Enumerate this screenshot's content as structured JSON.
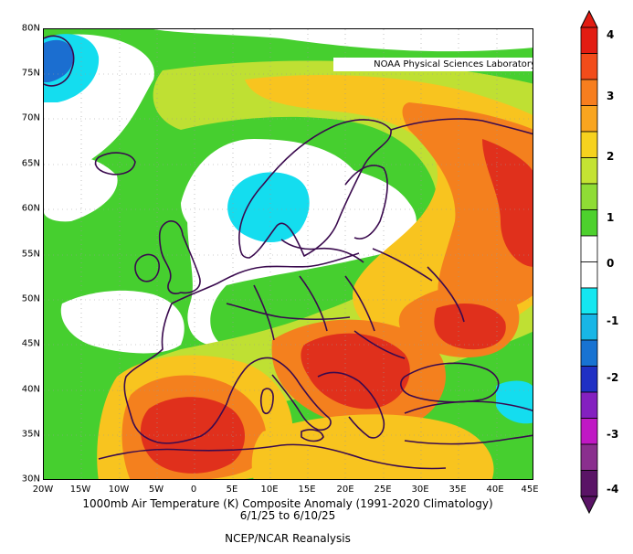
{
  "credit": "NOAA Physical Sciences Laboratory",
  "title": "1000mb Air Temperature (K) Composite Anomaly (1991-2020 Climatology)",
  "dates": "6/1/25  to 6/10/25",
  "source": "NCEP/NCAR Reanalysis",
  "lat_labels": [
    "80N",
    "75N",
    "70N",
    "65N",
    "60N",
    "55N",
    "50N",
    "45N",
    "40N",
    "35N",
    "30N"
  ],
  "lon_labels": [
    "20W",
    "15W",
    "10W",
    "5W",
    "0",
    "5E",
    "10E",
    "15E",
    "20E",
    "25E",
    "30E",
    "35E",
    "40E",
    "45E"
  ],
  "colorbar": {
    "labels": [
      "4",
      "3",
      "2",
      "1",
      "0",
      "-1",
      "-2",
      "-3",
      "-4"
    ],
    "colors": [
      "#e21c12",
      "#f24c1a",
      "#f77e1e",
      "#f9a51f",
      "#f6d21e",
      "#c4e333",
      "#8fdc35",
      "#4dd12d",
      "#ffffff",
      "#ffffff",
      "#15e7f0",
      "#18b6e6",
      "#1873d2",
      "#2030c4",
      "#8420c0",
      "#c018c4",
      "#8a2f8e",
      "#5a1466"
    ]
  },
  "colors": {
    "strong_warm": "#e0301c",
    "warm": "#f4801e",
    "mild": "#f8c41f",
    "slight": "#bfe033",
    "neutral_pos": "#46cf2f",
    "cold": "#14ddef",
    "very_cold": "#1b6ed0",
    "coast": "#3a0a4e"
  }
}
